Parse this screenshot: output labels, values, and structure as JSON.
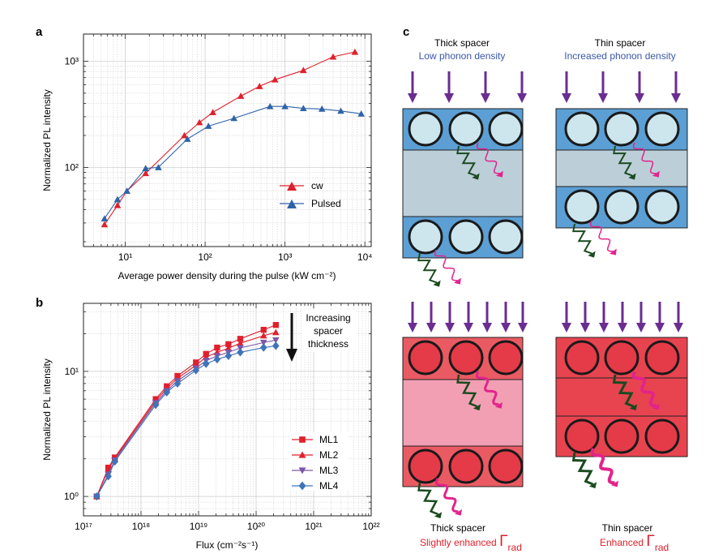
{
  "panel_letters": {
    "a": "a",
    "b": "b",
    "c": "c"
  },
  "chart_data": [
    {
      "id": "a",
      "type": "scatter",
      "title": "",
      "xlabel": "Average power density during the pulse (kW cm⁻²)",
      "ylabel": "Normalized PL intensity",
      "xscale": "log",
      "yscale": "log",
      "xlim": [
        3,
        12000
      ],
      "ylim": [
        18,
        1800
      ],
      "xticks": [
        10,
        100,
        1000,
        10000
      ],
      "xtick_labels": [
        "10¹",
        "10²",
        "10³",
        "10⁴"
      ],
      "yticks": [
        100,
        1000
      ],
      "ytick_labels": [
        "10²",
        "10³"
      ],
      "grid": true,
      "legend_position": "center-right",
      "series": [
        {
          "name": "cw",
          "color": "#e0202c",
          "marker": "triangle-up",
          "x": [
            5.5,
            8,
            10.5,
            18,
            55,
            85,
            125,
            280,
            480,
            750,
            1700,
            4000,
            7500
          ],
          "y": [
            29,
            44,
            60,
            88,
            200,
            265,
            330,
            470,
            580,
            670,
            820,
            1100,
            1220
          ]
        },
        {
          "name": "Pulsed",
          "color": "#2e63a8",
          "marker": "triangle-up",
          "x": [
            5.5,
            8,
            10.5,
            18,
            26,
            60,
            110,
            230,
            650,
            1000,
            1700,
            2900,
            5000,
            9000
          ],
          "y": [
            33,
            50,
            60,
            98,
            100,
            185,
            245,
            290,
            375,
            375,
            360,
            355,
            340,
            320
          ]
        }
      ]
    },
    {
      "id": "b",
      "type": "scatter",
      "title": "",
      "xlabel": "Flux (cm⁻²s⁻¹)",
      "ylabel": "Normalized PL intensity",
      "xscale": "log",
      "yscale": "log",
      "xlim": [
        1e+17,
        1e+22
      ],
      "ylim": [
        0.7,
        35
      ],
      "xticks": [
        1e+17,
        1e+18,
        1e+19,
        1e+20,
        1e+21,
        1e+22
      ],
      "xtick_labels": [
        "10¹⁷",
        "10¹⁸",
        "10¹⁹",
        "10²⁰",
        "10²¹",
        "10²²"
      ],
      "yticks": [
        1,
        10
      ],
      "ytick_labels": [
        "10⁰",
        "10¹"
      ],
      "grid": true,
      "legend_position": "bottom-right",
      "annotation": {
        "lines": [
          "Increasing",
          "spacer",
          "thickness"
        ],
        "arrow": "down"
      },
      "series": [
        {
          "name": "ML1",
          "color": "#e0202c",
          "marker": "square",
          "x": [
            1.7e+17,
            2.7e+17,
            3.5e+17,
            1.8e+18,
            2.8e+18,
            4.3e+18,
            9e+18,
            1.35e+19,
            2.1e+19,
            3.3e+19,
            5.3e+19,
            1.35e+20,
            2.2e+20
          ],
          "y": [
            1.0,
            1.7,
            2.05,
            6.0,
            7.6,
            9.2,
            11.8,
            13.8,
            15.5,
            16.5,
            18.2,
            21.5,
            23.5
          ]
        },
        {
          "name": "ML2",
          "color": "#e0202c",
          "marker": "triangle-up",
          "x": [
            1.7e+17,
            2.7e+17,
            3.5e+17,
            1.8e+18,
            2.8e+18,
            4.3e+18,
            9e+18,
            1.35e+19,
            2.1e+19,
            3.3e+19,
            5.3e+19,
            1.35e+20,
            2.2e+20
          ],
          "y": [
            1.0,
            1.65,
            2.0,
            5.8,
            7.3,
            8.8,
            11.2,
            13.0,
            14.2,
            15.3,
            16.8,
            19.3,
            20.5
          ]
        },
        {
          "name": "ML3",
          "color": "#7c57a8",
          "marker": "triangle-down",
          "x": [
            1.7e+17,
            2.7e+17,
            3.5e+17,
            1.8e+18,
            2.8e+18,
            4.3e+18,
            9e+18,
            1.35e+19,
            2.1e+19,
            3.3e+19,
            5.3e+19,
            1.35e+20,
            2.2e+20
          ],
          "y": [
            1.0,
            1.5,
            1.95,
            5.6,
            7.0,
            8.4,
            10.6,
            12.2,
            13.3,
            14.2,
            15.4,
            17.0,
            17.8
          ]
        },
        {
          "name": "ML4",
          "color": "#3f74b8",
          "marker": "diamond",
          "x": [
            1.7e+17,
            2.7e+17,
            3.5e+17,
            1.8e+18,
            2.8e+18,
            4.3e+18,
            9e+18,
            1.35e+19,
            2.1e+19,
            3.3e+19,
            5.3e+19,
            1.35e+20,
            2.2e+20
          ],
          "y": [
            1.0,
            1.45,
            1.9,
            5.4,
            6.8,
            8.0,
            10.2,
            11.5,
            12.5,
            13.3,
            14.2,
            15.5,
            16.0
          ]
        }
      ]
    }
  ],
  "diagram": {
    "top_left": {
      "label": "Thick spacer",
      "sublabel": "Low phonon density"
    },
    "top_right": {
      "label": "Thin spacer",
      "sublabel": "Increased phonon density"
    },
    "bottom_left": {
      "label": "Thick spacer",
      "sublabel": "Slightly enhanced ",
      "gamma": "Γ",
      "subscript": "rad"
    },
    "bottom_right": {
      "label": "Thin spacer",
      "sublabel": "Enhanced ",
      "gamma": "Γ",
      "subscript": "rad"
    },
    "colors": {
      "blue_layer": "#5b9fd4",
      "blue_spacer": "#bccfd9",
      "blue_dot": "#cde6ee",
      "red_layer": "#ea5a63",
      "red_spacer_thick": "#f29fb4",
      "red_spacer_thin": "#e84450",
      "red_dot": "#e53a48",
      "arrow": "#6a2d90",
      "phonon_dark": "#1a4a1e",
      "photon": "#e3238c",
      "label_blue": "#3a58a8",
      "label_red": "#e0202c"
    }
  }
}
